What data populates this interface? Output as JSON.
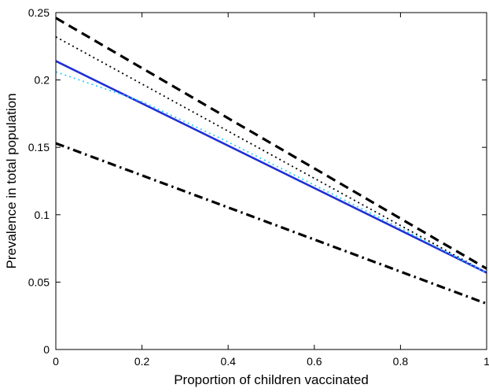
{
  "chart_data": {
    "type": "line",
    "title": "",
    "xlabel": "Proportion of children vaccinated",
    "ylabel": "Prevalence in total population",
    "xlim": [
      0,
      1
    ],
    "ylim": [
      0,
      0.25
    ],
    "x_ticks": [
      0,
      0.2,
      0.4,
      0.6,
      0.8,
      1
    ],
    "x_tick_labels": [
      "0",
      "0.2",
      "0.4",
      "0.6",
      "0.8",
      "1"
    ],
    "y_ticks": [
      0,
      0.05,
      0.1,
      0.15,
      0.2,
      0.25
    ],
    "y_tick_labels": [
      "0",
      "0.05",
      "0.1",
      "0.15",
      "0.2",
      "0.25"
    ],
    "grid": false,
    "legend": "none",
    "series": [
      {
        "style": "dashed",
        "color": "#000000",
        "x": [
          0,
          1
        ],
        "y": [
          0.246,
          0.06
        ]
      },
      {
        "style": "dotted",
        "color": "#000000",
        "x": [
          0,
          1
        ],
        "y": [
          0.232,
          0.057
        ]
      },
      {
        "style": "solid",
        "color": "#1f2fd6",
        "x": [
          0,
          1
        ],
        "y": [
          0.214,
          0.057
        ]
      },
      {
        "style": "dotted",
        "color": "#33ccff",
        "x": [
          0,
          0.2,
          0.4,
          0.6,
          0.8,
          1
        ],
        "y": [
          0.206,
          0.184,
          0.154,
          0.122,
          0.09,
          0.057
        ]
      },
      {
        "style": "dashdot",
        "color": "#000000",
        "x": [
          0,
          1
        ],
        "y": [
          0.153,
          0.034
        ]
      }
    ]
  }
}
